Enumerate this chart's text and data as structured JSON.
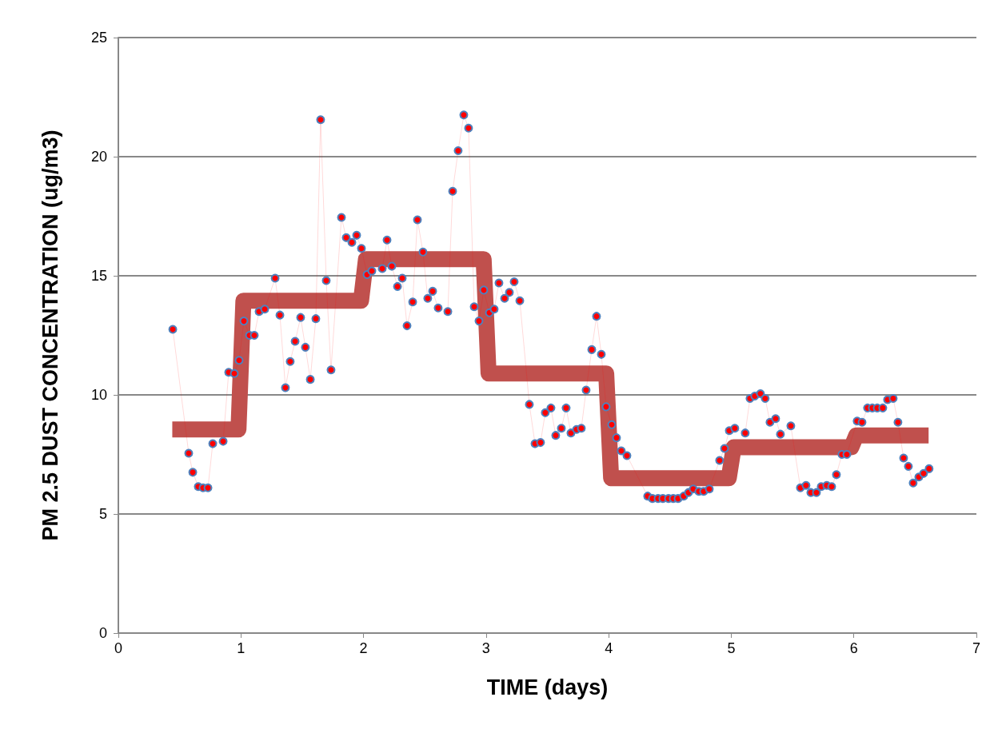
{
  "chart_data": {
    "type": "line",
    "xlabel": "TIME (days)",
    "ylabel": "PM 2.5 DUST CONCENTRATION (ug/m3)",
    "xlim": [
      0,
      7
    ],
    "xticks": [
      0,
      1,
      2,
      3,
      4,
      5,
      6,
      7
    ],
    "ylim": [
      0,
      25
    ],
    "yticks": [
      0,
      5,
      10,
      15,
      20,
      25
    ],
    "grid": "y",
    "series": [
      {
        "marker": "circle",
        "color": "#ff0000",
        "x": [
          0.444,
          0.574,
          0.607,
          0.652,
          0.691,
          0.731,
          0.77,
          0.855,
          0.9,
          0.946,
          0.985,
          1.024,
          1.07,
          1.109,
          1.148,
          1.194,
          1.279,
          1.318,
          1.363,
          1.402,
          1.442,
          1.487,
          1.526,
          1.566,
          1.611,
          1.65,
          1.696,
          1.735,
          1.82,
          1.859,
          1.905,
          1.944,
          1.983,
          2.029,
          2.068,
          2.153,
          2.192,
          2.231,
          2.277,
          2.316,
          2.355,
          2.401,
          2.44,
          2.485,
          2.524,
          2.564,
          2.609,
          2.688,
          2.727,
          2.772,
          2.818,
          2.857,
          2.903,
          2.942,
          2.981,
          3.027,
          3.066,
          3.105,
          3.151,
          3.19,
          3.229,
          3.275,
          3.353,
          3.399,
          3.444,
          3.483,
          3.529,
          3.568,
          3.614,
          3.653,
          3.692,
          3.738,
          3.777,
          3.816,
          3.862,
          3.901,
          3.94,
          3.979,
          4.025,
          4.064,
          4.103,
          4.149,
          4.318,
          4.357,
          4.403,
          4.442,
          4.488,
          4.527,
          4.566,
          4.612,
          4.651,
          4.69,
          4.736,
          4.775,
          4.821,
          4.905,
          4.945,
          4.984,
          5.029,
          5.114,
          5.153,
          5.192,
          5.238,
          5.277,
          5.316,
          5.362,
          5.401,
          5.486,
          5.564,
          5.61,
          5.649,
          5.695,
          5.734,
          5.779,
          5.819,
          5.858,
          5.903,
          5.943,
          6.027,
          6.067,
          6.112,
          6.151,
          6.191,
          6.236,
          6.275,
          6.321,
          6.36,
          6.406,
          6.445,
          6.484,
          6.53,
          6.569,
          6.614
        ],
        "values": [
          12.75,
          7.55,
          6.75,
          6.15,
          6.1,
          6.1,
          7.95,
          8.05,
          10.95,
          10.9,
          11.45,
          13.1,
          12.5,
          12.5,
          13.5,
          13.6,
          14.9,
          13.35,
          10.3,
          11.4,
          12.25,
          13.25,
          12.0,
          10.65,
          13.2,
          21.55,
          14.8,
          11.05,
          17.45,
          16.6,
          16.4,
          16.7,
          16.15,
          15.05,
          15.2,
          15.3,
          16.5,
          15.4,
          14.55,
          14.9,
          12.9,
          13.9,
          17.35,
          16.0,
          14.05,
          14.35,
          13.65,
          13.5,
          18.55,
          20.25,
          21.75,
          21.2,
          13.7,
          13.1,
          14.4,
          13.45,
          13.6,
          14.7,
          14.05,
          14.3,
          14.75,
          13.95,
          9.6,
          7.95,
          8.0,
          9.25,
          9.45,
          8.3,
          8.6,
          9.45,
          8.4,
          8.55,
          8.6,
          10.2,
          11.9,
          13.3,
          11.7,
          9.5,
          8.75,
          8.2,
          7.65,
          7.45,
          5.75,
          5.65,
          5.65,
          5.65,
          5.65,
          5.65,
          5.65,
          5.75,
          5.9,
          6.05,
          5.95,
          5.95,
          6.05,
          7.25,
          7.75,
          8.5,
          8.6,
          8.4,
          9.85,
          9.95,
          10.05,
          9.85,
          8.85,
          9.0,
          8.35,
          8.7,
          6.1,
          6.2,
          5.9,
          5.9,
          6.15,
          6.2,
          6.15,
          6.65,
          7.5,
          7.5,
          8.9,
          8.85,
          9.45,
          9.45,
          9.45,
          9.45,
          9.8,
          9.85,
          8.85,
          7.35,
          7.0,
          6.3,
          6.55,
          6.7,
          6.9
        ]
      },
      {
        "marker": "none",
        "color": "#c0504d",
        "x": [
          0.44,
          0.98,
          1.02,
          1.98,
          2.02,
          2.98,
          3.02,
          3.98,
          4.02,
          4.98,
          5.02,
          5.98,
          6.02,
          6.61
        ],
        "values": [
          8.55,
          8.55,
          13.95,
          13.95,
          15.7,
          15.7,
          10.9,
          10.9,
          6.5,
          6.5,
          7.8,
          7.8,
          8.3,
          8.3
        ]
      }
    ]
  }
}
